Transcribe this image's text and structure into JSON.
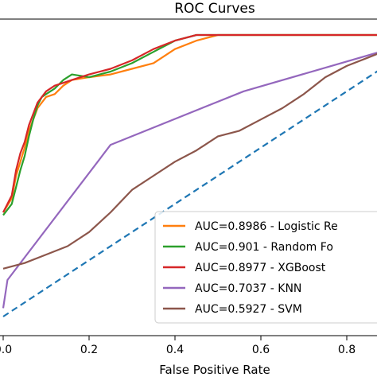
{
  "chart_data": {
    "type": "line",
    "title": "ROC Curves",
    "xlabel": "False Positive Rate",
    "ylabel": "",
    "xlim": [
      0,
      0.87
    ],
    "ylim": [
      0,
      1.06
    ],
    "grid": false,
    "legend_position": "bottom-right",
    "x_ticks": [
      {
        "value": 0.0,
        "label": "0.0"
      },
      {
        "value": 0.2,
        "label": "0.2"
      },
      {
        "value": 0.4,
        "label": "0.4"
      },
      {
        "value": 0.6,
        "label": "0.6"
      },
      {
        "value": 0.8,
        "label": "0.8"
      }
    ],
    "series": [
      {
        "name": "AUC=0.8986 - Logistic Re",
        "color": "#ff7f0e",
        "x": [
          0.0,
          0.02,
          0.03,
          0.04,
          0.05,
          0.06,
          0.07,
          0.08,
          0.09,
          0.1,
          0.12,
          0.14,
          0.16,
          0.2,
          0.25,
          0.3,
          0.35,
          0.4,
          0.45,
          0.5,
          0.55,
          0.6,
          0.65,
          0.7,
          0.75,
          0.8,
          0.9
        ],
        "y": [
          0.37,
          0.42,
          0.5,
          0.55,
          0.6,
          0.66,
          0.7,
          0.74,
          0.76,
          0.78,
          0.79,
          0.82,
          0.84,
          0.85,
          0.86,
          0.88,
          0.9,
          0.95,
          0.98,
          1.0,
          1.0,
          1.0,
          1.0,
          1.0,
          1.0,
          1.0,
          1.0
        ]
      },
      {
        "name": "AUC=0.901 - Random Fo",
        "color": "#2ca02c",
        "x": [
          0.0,
          0.02,
          0.03,
          0.04,
          0.05,
          0.06,
          0.07,
          0.08,
          0.09,
          0.1,
          0.12,
          0.14,
          0.16,
          0.2,
          0.25,
          0.3,
          0.35,
          0.4,
          0.45,
          0.5,
          0.55,
          0.6,
          0.65,
          0.7,
          0.75,
          0.8,
          0.9
        ],
        "y": [
          0.36,
          0.4,
          0.46,
          0.52,
          0.57,
          0.64,
          0.7,
          0.75,
          0.78,
          0.79,
          0.81,
          0.84,
          0.86,
          0.85,
          0.87,
          0.9,
          0.94,
          0.98,
          1.0,
          1.0,
          1.0,
          1.0,
          1.0,
          1.0,
          1.0,
          1.0,
          1.0
        ]
      },
      {
        "name": "AUC=0.8977 - XGBoost",
        "color": "#d62728",
        "x": [
          0.0,
          0.02,
          0.03,
          0.04,
          0.05,
          0.06,
          0.07,
          0.08,
          0.09,
          0.1,
          0.12,
          0.14,
          0.16,
          0.2,
          0.25,
          0.3,
          0.35,
          0.4,
          0.45,
          0.5,
          0.55,
          0.6,
          0.65,
          0.7,
          0.75,
          0.8,
          0.9
        ],
        "y": [
          0.37,
          0.43,
          0.52,
          0.58,
          0.62,
          0.68,
          0.72,
          0.76,
          0.78,
          0.8,
          0.82,
          0.83,
          0.84,
          0.86,
          0.88,
          0.91,
          0.95,
          0.98,
          1.0,
          1.0,
          1.0,
          1.0,
          1.0,
          1.0,
          1.0,
          1.0,
          1.0
        ]
      },
      {
        "name": "AUC=0.7037 - KNN",
        "color": "#9467bd",
        "x": [
          0.0,
          0.01,
          0.25,
          0.56,
          0.9
        ],
        "y": [
          0.03,
          0.13,
          0.61,
          0.8,
          0.95
        ]
      },
      {
        "name": "AUC=0.5927 - SVM",
        "color": "#8c564b",
        "x": [
          0.0,
          0.05,
          0.1,
          0.15,
          0.2,
          0.25,
          0.3,
          0.35,
          0.4,
          0.45,
          0.5,
          0.55,
          0.6,
          0.65,
          0.7,
          0.75,
          0.8,
          0.85,
          0.9
        ],
        "y": [
          0.17,
          0.19,
          0.22,
          0.25,
          0.3,
          0.37,
          0.45,
          0.5,
          0.55,
          0.59,
          0.64,
          0.66,
          0.7,
          0.74,
          0.79,
          0.85,
          0.89,
          0.92,
          0.95
        ]
      },
      {
        "name": "",
        "color": "#1f77b4",
        "dashed": true,
        "x": [
          0.0,
          1.0
        ],
        "y": [
          0.0,
          1.0
        ]
      }
    ]
  }
}
